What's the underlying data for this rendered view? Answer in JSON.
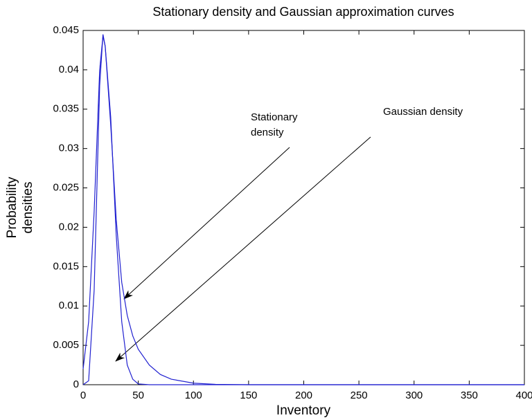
{
  "chart_data": {
    "type": "line",
    "title": "Stationary density and Gaussian approximation curves",
    "x_label": "Inventory",
    "y_label": [
      "Probability",
      "densities"
    ],
    "x": [
      0,
      5,
      10,
      15,
      18,
      20,
      25,
      30,
      35,
      40,
      45,
      50,
      60,
      70,
      80,
      100,
      120,
      150,
      200,
      300,
      400
    ],
    "series": [
      {
        "name": "Gaussian density",
        "color": "#2020d0",
        "values": [
          0.002,
          0.008,
          0.022,
          0.04,
          0.0443,
          0.043,
          0.034,
          0.019,
          0.008,
          0.0025,
          0.0007,
          0.0001,
          0,
          0,
          0,
          0,
          0,
          0,
          0,
          0,
          0
        ]
      },
      {
        "name": "Stationary density",
        "color": "#2020d0",
        "values": [
          0,
          0.0005,
          0.012,
          0.038,
          0.0445,
          0.043,
          0.033,
          0.021,
          0.013,
          0.0088,
          0.0062,
          0.0045,
          0.0025,
          0.0013,
          0.0007,
          0.0002,
          5e-05,
          0,
          0,
          0,
          0
        ]
      }
    ],
    "annotations": [
      {
        "lines": [
          "Stationary",
          "density"
        ]
      },
      {
        "lines": [
          "Gaussian density"
        ]
      }
    ],
    "xlim": [
      0,
      400
    ],
    "xticks": [
      0,
      50,
      100,
      150,
      200,
      250,
      300,
      350,
      400
    ],
    "ylim": [
      0,
      0.045
    ],
    "yticks": [
      0,
      0.005,
      0.01,
      0.015,
      0.02,
      0.025,
      0.03,
      0.035,
      0.04,
      0.045
    ],
    "grid": false
  }
}
